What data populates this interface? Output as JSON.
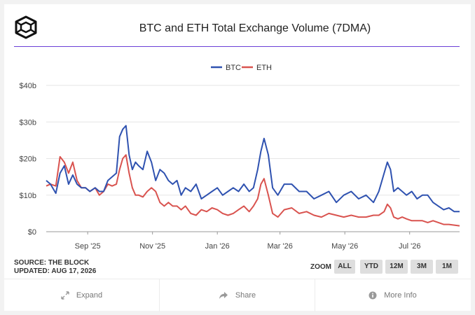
{
  "title": "BTC and ETH Total Exchange Volume (7DMA)",
  "source": "SOURCE: THE BLOCK",
  "updated": "UPDATED: AUG 17, 2026",
  "zoom": {
    "label": "ZOOM",
    "buttons": [
      "ALL",
      "YTD",
      "12M",
      "3M",
      "1M"
    ]
  },
  "footer": {
    "expand": "Expand",
    "share": "Share",
    "more_info": "More Info"
  },
  "icons": {
    "logo": "the-block-cube-logo",
    "expand": "expand-arrows-icon",
    "share": "share-arrow-icon",
    "info": "info-circle-icon"
  },
  "colors": {
    "btc": "#2f52b0",
    "eth": "#d9534f",
    "accent": "#6a3fd6"
  },
  "chart_data": {
    "type": "line",
    "title": "BTC and ETH Total Exchange Volume (7DMA)",
    "xlabel": "",
    "ylabel": "",
    "ylim": [
      0,
      40
    ],
    "y_ticks": [
      "$0",
      "$10b",
      "$20b",
      "$30b",
      "$40b"
    ],
    "y_tick_values": [
      0,
      10,
      20,
      30,
      40
    ],
    "x_ticks": [
      "Sep '25",
      "Nov '25",
      "Jan '26",
      "Mar '26",
      "May '26",
      "Jul '26"
    ],
    "x_tick_dates": [
      "2025-09-01",
      "2025-11-01",
      "2026-01-01",
      "2026-03-01",
      "2026-05-01",
      "2026-07-01"
    ],
    "x_range": [
      "2025-07-24",
      "2026-08-17"
    ],
    "grid": true,
    "legend": "top-center",
    "series": [
      {
        "name": "BTC",
        "x": [
          "2025-07-24",
          "2025-07-28",
          "2025-08-02",
          "2025-08-06",
          "2025-08-10",
          "2025-08-14",
          "2025-08-18",
          "2025-08-22",
          "2025-08-26",
          "2025-08-30",
          "2025-09-03",
          "2025-09-08",
          "2025-09-12",
          "2025-09-16",
          "2025-09-20",
          "2025-09-24",
          "2025-09-28",
          "2025-10-01",
          "2025-10-04",
          "2025-10-07",
          "2025-10-10",
          "2025-10-13",
          "2025-10-16",
          "2025-10-19",
          "2025-10-23",
          "2025-10-27",
          "2025-10-31",
          "2025-11-04",
          "2025-11-08",
          "2025-11-12",
          "2025-11-16",
          "2025-11-20",
          "2025-11-24",
          "2025-11-28",
          "2025-12-02",
          "2025-12-07",
          "2025-12-12",
          "2025-12-17",
          "2025-12-22",
          "2025-12-27",
          "2026-01-01",
          "2026-01-06",
          "2026-01-11",
          "2026-01-16",
          "2026-01-21",
          "2026-01-26",
          "2026-01-31",
          "2026-02-04",
          "2026-02-08",
          "2026-02-11",
          "2026-02-14",
          "2026-02-18",
          "2026-02-22",
          "2026-02-27",
          "2026-03-05",
          "2026-03-12",
          "2026-03-19",
          "2026-03-26",
          "2026-04-02",
          "2026-04-09",
          "2026-04-16",
          "2026-04-23",
          "2026-04-30",
          "2026-05-07",
          "2026-05-14",
          "2026-05-21",
          "2026-05-28",
          "2026-06-02",
          "2026-06-07",
          "2026-06-10",
          "2026-06-13",
          "2026-06-16",
          "2026-06-20",
          "2026-06-24",
          "2026-06-28",
          "2026-07-03",
          "2026-07-08",
          "2026-07-13",
          "2026-07-18",
          "2026-07-23",
          "2026-07-28",
          "2026-08-02",
          "2026-08-07",
          "2026-08-12",
          "2026-08-17"
        ],
        "values": [
          14,
          13,
          10.5,
          16,
          18,
          13,
          15.5,
          13,
          12,
          12,
          11,
          12,
          11,
          11,
          14,
          15,
          16,
          26,
          28,
          29,
          21,
          17,
          19,
          18,
          17,
          22,
          19,
          14,
          17,
          16,
          14,
          13,
          14,
          10,
          12,
          11,
          13,
          9,
          10,
          11,
          12,
          10,
          11,
          12,
          11,
          13,
          11,
          12,
          17,
          22,
          25.5,
          21,
          12,
          10,
          13,
          13,
          11,
          11,
          9,
          10,
          11,
          8,
          10,
          11,
          9,
          10,
          8,
          11,
          16,
          19,
          17,
          11,
          12,
          11,
          10,
          11,
          9,
          10,
          10,
          8,
          7,
          6,
          6.5,
          5.5,
          5.5
        ]
      },
      {
        "name": "ETH",
        "x": [
          "2025-07-24",
          "2025-07-28",
          "2025-08-02",
          "2025-08-06",
          "2025-08-10",
          "2025-08-14",
          "2025-08-18",
          "2025-08-22",
          "2025-08-26",
          "2025-08-30",
          "2025-09-03",
          "2025-09-08",
          "2025-09-12",
          "2025-09-16",
          "2025-09-20",
          "2025-09-24",
          "2025-09-28",
          "2025-10-01",
          "2025-10-04",
          "2025-10-07",
          "2025-10-10",
          "2025-10-13",
          "2025-10-16",
          "2025-10-19",
          "2025-10-23",
          "2025-10-27",
          "2025-10-31",
          "2025-11-04",
          "2025-11-08",
          "2025-11-12",
          "2025-11-16",
          "2025-11-20",
          "2025-11-24",
          "2025-11-28",
          "2025-12-02",
          "2025-12-07",
          "2025-12-12",
          "2025-12-17",
          "2025-12-22",
          "2025-12-27",
          "2026-01-01",
          "2026-01-06",
          "2026-01-11",
          "2026-01-16",
          "2026-01-21",
          "2026-01-26",
          "2026-01-31",
          "2026-02-04",
          "2026-02-08",
          "2026-02-11",
          "2026-02-14",
          "2026-02-18",
          "2026-02-22",
          "2026-02-27",
          "2026-03-05",
          "2026-03-12",
          "2026-03-19",
          "2026-03-26",
          "2026-04-02",
          "2026-04-09",
          "2026-04-16",
          "2026-04-23",
          "2026-04-30",
          "2026-05-07",
          "2026-05-14",
          "2026-05-21",
          "2026-05-28",
          "2026-06-02",
          "2026-06-07",
          "2026-06-10",
          "2026-06-13",
          "2026-06-16",
          "2026-06-20",
          "2026-06-24",
          "2026-06-28",
          "2026-07-03",
          "2026-07-08",
          "2026-07-13",
          "2026-07-18",
          "2026-07-23",
          "2026-07-28",
          "2026-08-02",
          "2026-08-07",
          "2026-08-12",
          "2026-08-17"
        ],
        "values": [
          12.5,
          13,
          12.5,
          20.5,
          19,
          16,
          19,
          14,
          12,
          12,
          11,
          12,
          10,
          11,
          13,
          12.5,
          13,
          17,
          20,
          21,
          16,
          12,
          10,
          10,
          9.5,
          11,
          12,
          11,
          8,
          7,
          8,
          7,
          7,
          6,
          7,
          5,
          4.5,
          6,
          5.5,
          6.5,
          6,
          5,
          4.5,
          5,
          6,
          7,
          5.5,
          7,
          9,
          13,
          14.5,
          10,
          5,
          4,
          6,
          6.5,
          5,
          5.5,
          4.5,
          4,
          5,
          4.5,
          4,
          4.5,
          4,
          4,
          4.5,
          4.5,
          5.5,
          7.5,
          6.5,
          4,
          3.5,
          4,
          3.5,
          3,
          3,
          3,
          2.5,
          3,
          2.5,
          2,
          2,
          1.8,
          1.6
        ]
      }
    ]
  }
}
